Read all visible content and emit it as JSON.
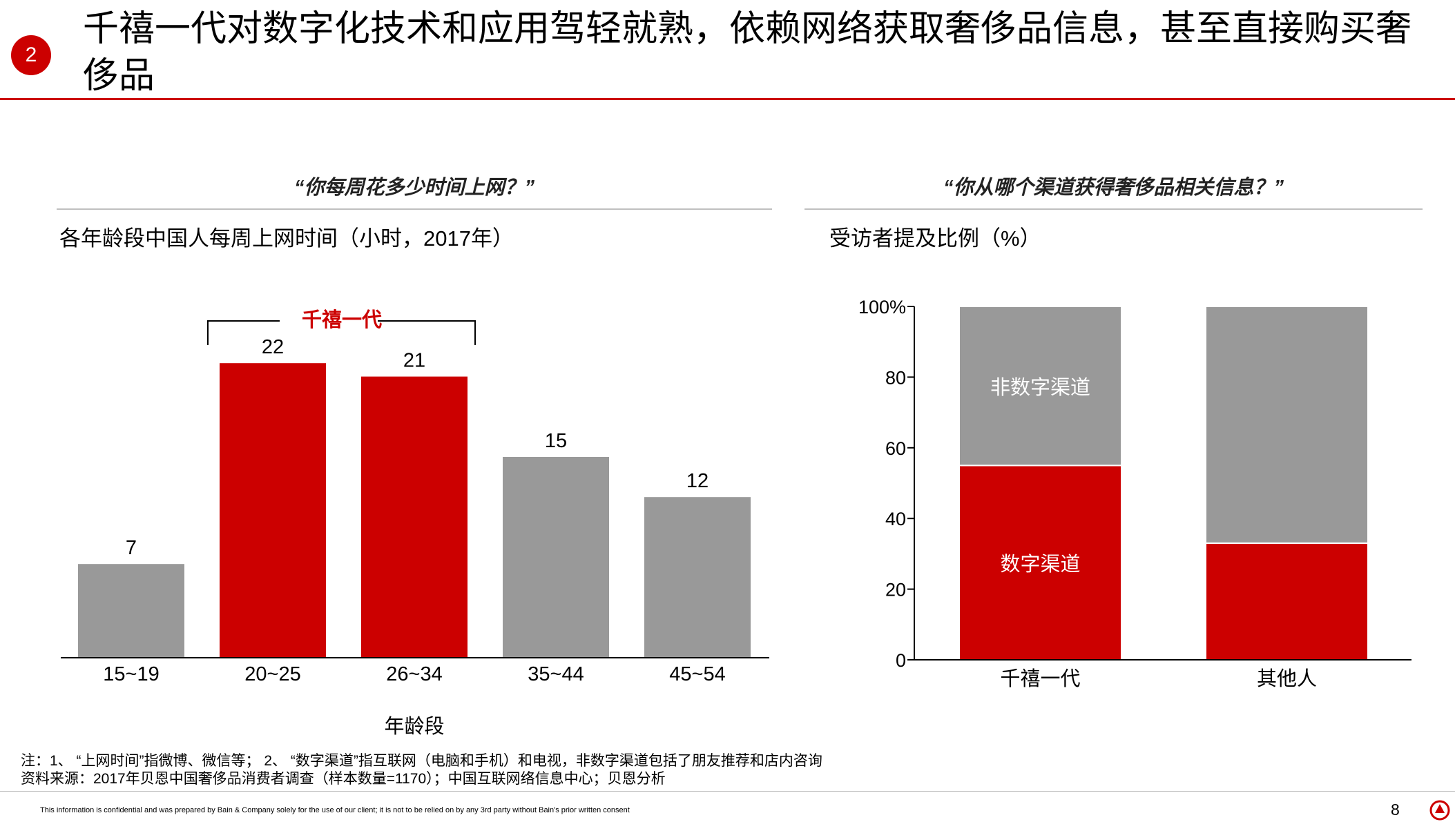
{
  "header": {
    "badge": "2",
    "title": "千禧一代对数字化技术和应用驾轻就熟，依赖网络获取奢侈品信息，甚至直接购买奢侈品"
  },
  "left_panel": {
    "question": "“你每周花多少时间上网？”",
    "subtitle": "各年龄段中国人每周上网时间（小时，2017年）",
    "bracket_label": "千禧一代"
  },
  "right_panel": {
    "question": "“你从哪个渠道获得奢侈品相关信息？”",
    "subtitle": "受访者提及比例（%）"
  },
  "chart_data": [
    {
      "type": "bar",
      "title": "各年龄段中国人每周上网时间（小时，2017年）",
      "categories": [
        "15~19",
        "20~25",
        "26~34",
        "35~44",
        "45~54"
      ],
      "values": [
        7,
        22,
        21,
        15,
        12
      ],
      "value_labels": [
        "7",
        "22",
        "21",
        "15",
        "12"
      ],
      "highlight": [
        false,
        true,
        true,
        false,
        false
      ],
      "xlabel": "年龄段",
      "ylabel": "",
      "ylim": [
        0,
        22
      ],
      "colors": {
        "default": "#999999",
        "highlight": "#cc0000"
      },
      "annotation": "千禧一代"
    },
    {
      "type": "bar",
      "stacked": true,
      "title": "受访者提及比例（%）",
      "categories": [
        "千禧一代",
        "其他人"
      ],
      "series": [
        {
          "name": "数字渠道",
          "values": [
            55,
            33
          ],
          "color": "#cc0000"
        },
        {
          "name": "非数字渠道",
          "values": [
            45,
            67
          ],
          "color": "#999999"
        }
      ],
      "ylim": [
        0,
        100
      ],
      "yticks": [
        "0",
        "20",
        "40",
        "60",
        "80",
        "100%"
      ]
    }
  ],
  "notes": {
    "line1": "注：1、 “上网时间”指微博、微信等； 2、 “数字渠道”指互联网（电脑和手机）和电视，非数字渠道包括了朋友推荐和店内咨询",
    "line2": "资料来源：2017年贝恩中国奢侈品消费者调查（样本数量=1170）；中国互联网络信息中心；贝恩分析"
  },
  "footer": {
    "disclaimer": "This information is confidential and was prepared by Bain & Company solely for the use of our client; it is not to be relied on by any 3rd party without Bain's prior written consent",
    "page": "8"
  },
  "colors": {
    "accent": "#cc0000",
    "gray": "#999999",
    "rule": "#bfbfbf"
  }
}
